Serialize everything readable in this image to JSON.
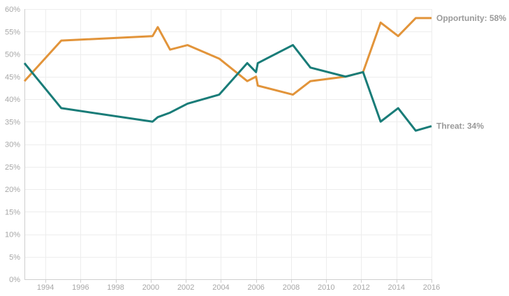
{
  "chart_data": {
    "type": "line",
    "title": "",
    "xlabel": "",
    "ylabel": "",
    "xlim": [
      1992.8,
      2016
    ],
    "ylim": [
      0,
      60
    ],
    "grid": true,
    "legend": "end-of-line labels",
    "x_ticks": [
      {
        "value": 1994,
        "label": "1994"
      },
      {
        "value": 1996,
        "label": "1996"
      },
      {
        "value": 1998,
        "label": "1998"
      },
      {
        "value": 2000,
        "label": "2000"
      },
      {
        "value": 2002,
        "label": "2002"
      },
      {
        "value": 2004,
        "label": "2004"
      },
      {
        "value": 2006,
        "label": "2006"
      },
      {
        "value": 2008,
        "label": "2008"
      },
      {
        "value": 2010,
        "label": "2010"
      },
      {
        "value": 2012,
        "label": "2012"
      },
      {
        "value": 2014,
        "label": "2014"
      },
      {
        "value": 2016,
        "label": "2016"
      }
    ],
    "y_ticks": [
      {
        "value": 0,
        "label": "0%"
      },
      {
        "value": 5,
        "label": "5%"
      },
      {
        "value": 10,
        "label": "10%"
      },
      {
        "value": 15,
        "label": "15%"
      },
      {
        "value": 20,
        "label": "20%"
      },
      {
        "value": 25,
        "label": "25%"
      },
      {
        "value": 30,
        "label": "30%"
      },
      {
        "value": 35,
        "label": "35%"
      },
      {
        "value": 40,
        "label": "40%"
      },
      {
        "value": 45,
        "label": "45%"
      },
      {
        "value": 50,
        "label": "50%"
      },
      {
        "value": 55,
        "label": "55%"
      },
      {
        "value": 60,
        "label": "60%"
      }
    ],
    "series": [
      {
        "key": "opportunity",
        "name": "Opportunity",
        "label": "Opportunity: 58%",
        "color": "#e2943a",
        "points": [
          {
            "x": 1992.8,
            "y": 44
          },
          {
            "x": 1994.9,
            "y": 53
          },
          {
            "x": 2000.1,
            "y": 54
          },
          {
            "x": 2000.4,
            "y": 56
          },
          {
            "x": 2001.1,
            "y": 51
          },
          {
            "x": 2002.1,
            "y": 52
          },
          {
            "x": 2003.9,
            "y": 49
          },
          {
            "x": 2005.5,
            "y": 44
          },
          {
            "x": 2006.0,
            "y": 45
          },
          {
            "x": 2006.1,
            "y": 43
          },
          {
            "x": 2008.1,
            "y": 41
          },
          {
            "x": 2009.1,
            "y": 44
          },
          {
            "x": 2011.1,
            "y": 45
          },
          {
            "x": 2012.1,
            "y": 46
          },
          {
            "x": 2013.1,
            "y": 57
          },
          {
            "x": 2014.1,
            "y": 54
          },
          {
            "x": 2015.1,
            "y": 58
          },
          {
            "x": 2016.0,
            "y": 58
          }
        ]
      },
      {
        "key": "threat",
        "name": "Threat",
        "label": "Threat: 34%",
        "color": "#197c78",
        "points": [
          {
            "x": 1992.8,
            "y": 48
          },
          {
            "x": 1994.9,
            "y": 38
          },
          {
            "x": 2000.1,
            "y": 35
          },
          {
            "x": 2000.4,
            "y": 36
          },
          {
            "x": 2001.1,
            "y": 37
          },
          {
            "x": 2002.1,
            "y": 39
          },
          {
            "x": 2003.9,
            "y": 41
          },
          {
            "x": 2005.5,
            "y": 48
          },
          {
            "x": 2006.0,
            "y": 46
          },
          {
            "x": 2006.1,
            "y": 48
          },
          {
            "x": 2008.1,
            "y": 52
          },
          {
            "x": 2009.1,
            "y": 47
          },
          {
            "x": 2011.1,
            "y": 45
          },
          {
            "x": 2012.1,
            "y": 46
          },
          {
            "x": 2013.1,
            "y": 35
          },
          {
            "x": 2014.1,
            "y": 38
          },
          {
            "x": 2015.1,
            "y": 33
          },
          {
            "x": 2016.0,
            "y": 34
          }
        ]
      }
    ]
  },
  "colors": {
    "grid": "#ededed",
    "axis": "#cfcfcf",
    "tick_text": "#a7a7a7",
    "background": "#ffffff"
  }
}
